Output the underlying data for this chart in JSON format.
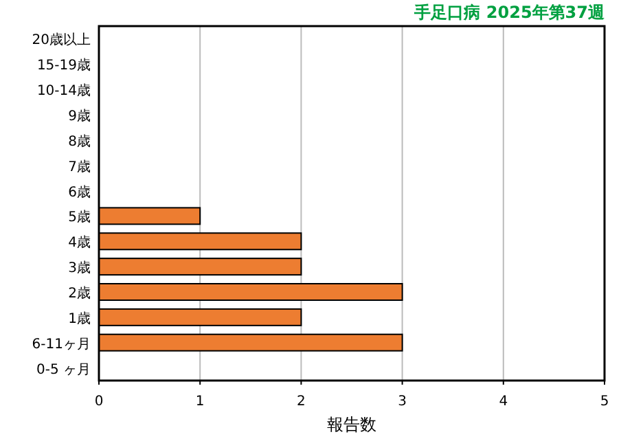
{
  "chart_data": {
    "type": "bar",
    "orientation": "horizontal",
    "title": "手足口病 2025年第37週",
    "xlabel": "報告数",
    "categories": [
      "20歳以上",
      "15-19歳",
      "10-14歳",
      "9歳",
      "8歳",
      "7歳",
      "6歳",
      "5歳",
      "4歳",
      "3歳",
      "2歳",
      "1歳",
      "6-11ヶ月",
      "0-5 ヶ月"
    ],
    "values": [
      0,
      0,
      0,
      0,
      0,
      0,
      0,
      1,
      2,
      2,
      3,
      2,
      3,
      0
    ],
    "color": "#ed7d31",
    "xlim": [
      0,
      5
    ],
    "xticks": [
      0,
      1,
      2,
      3,
      4,
      5
    ],
    "grid": "x"
  }
}
